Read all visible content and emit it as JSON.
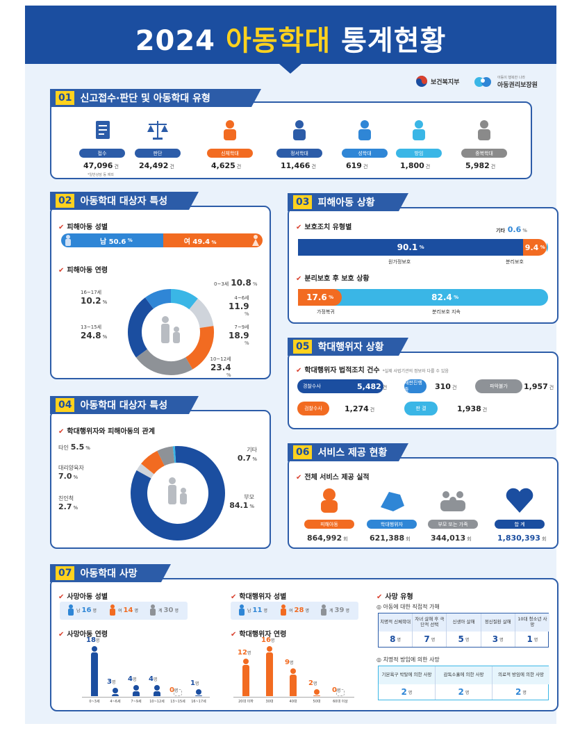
{
  "header": {
    "year": "2024",
    "highlight": "아동학대",
    "rest": "통계현황"
  },
  "logos": {
    "ministry": "보건복지부",
    "agency": "아동권리보장원",
    "agency_tag": "아동이 행복한 나라"
  },
  "sec01": {
    "no": "01",
    "title": "신고접수·판단 및 아동학대 유형",
    "items": [
      {
        "label": "접수",
        "value": "47,096",
        "unit": "건",
        "note": "*일반상담 등 제외",
        "color": "#2c5ca8"
      },
      {
        "label": "판단",
        "value": "24,492",
        "unit": "건",
        "color": "#2c5ca8"
      },
      {
        "label": "신체학대",
        "value": "4,625",
        "unit": "건",
        "color": "#f26b21"
      },
      {
        "label": "정서학대",
        "value": "11,466",
        "unit": "건",
        "color": "#2c5ca8"
      },
      {
        "label": "성학대",
        "value": "619",
        "unit": "건",
        "color": "#2f86d6"
      },
      {
        "label": "방임",
        "value": "1,800",
        "unit": "건",
        "color": "#3ab6e6"
      },
      {
        "label": "중복학대",
        "value": "5,982",
        "unit": "건",
        "color": "#8a8a8a"
      }
    ]
  },
  "sec02": {
    "no": "02",
    "title": "아동학대 대상자 특성",
    "gender_title": "피해아동 성별",
    "male": "남 50.6",
    "female": "여 49.4",
    "pct": "%",
    "age_title": "피해아동 연령",
    "ages": [
      {
        "label": "0~3세",
        "value": "10.8",
        "pct": 10.8,
        "color": "#3ab6e6"
      },
      {
        "label": "4~6세",
        "value": "11.9",
        "pct": 11.9,
        "color": "#cfd4db"
      },
      {
        "label": "7~9세",
        "value": "18.9",
        "pct": 18.9,
        "color": "#f26b21"
      },
      {
        "label": "10~12세",
        "value": "23.4",
        "pct": 23.4,
        "color": "#8e9297"
      },
      {
        "label": "13~15세",
        "value": "24.8",
        "pct": 24.8,
        "color": "#1b4ea0"
      },
      {
        "label": "16~17세",
        "value": "10.2",
        "pct": 10.2,
        "color": "#2f86d6"
      }
    ]
  },
  "sec03": {
    "no": "03",
    "title": "피해아동 상황",
    "prot_title": "보호조치 유형별",
    "home": {
      "value": "90.1",
      "label": "원가정보호"
    },
    "sep": {
      "value": "9.4",
      "label": "분리보호"
    },
    "etc": {
      "label": "기타",
      "value": "0.6"
    },
    "after_title": "분리보호 후 보호 상황",
    "ret": {
      "value": "17.6",
      "label": "가정복귀"
    },
    "cont": {
      "value": "82.4",
      "label": "분리보호 지속"
    },
    "pct": "%"
  },
  "sec04": {
    "no": "04",
    "title": "아동학대 대상자 특성",
    "rel_title": "학대행위자와 피해아동의 관계",
    "rels": [
      {
        "label": "부모",
        "value": "84.1",
        "pct": 84.1,
        "color": "#1b4ea0"
      },
      {
        "label": "친인척",
        "value": "2.7",
        "pct": 2.7,
        "color": "#cfd4db"
      },
      {
        "label": "대리양육자",
        "value": "7.0",
        "pct": 7.0,
        "color": "#f26b21"
      },
      {
        "label": "타인",
        "value": "5.5",
        "pct": 5.5,
        "color": "#8e9297"
      },
      {
        "label": "기타",
        "value": "0.7",
        "pct": 0.7,
        "color": "#3ab6e6"
      }
    ],
    "pct": "%"
  },
  "sec05": {
    "no": "05",
    "title": "학대행위자 상황",
    "legal_title": "학대행위자 법적조치 건수",
    "legal_note": "*실제 사법기관의 정보와 다를 수 있음",
    "items": [
      {
        "label": "경찰수사",
        "value": "5,482",
        "color": "#1b4ea0"
      },
      {
        "label": "재판진행중",
        "value": "310",
        "color": "#2f86d6"
      },
      {
        "label": "파악불가",
        "value": "1,957",
        "color": "#8e9297"
      },
      {
        "label": "검찰수사",
        "value": "1,274",
        "color": "#f26b21"
      },
      {
        "label": "판 결",
        "value": "1,938",
        "color": "#3ab6e6"
      }
    ],
    "unit": "건"
  },
  "sec06": {
    "no": "06",
    "title": "서비스 제공 현황",
    "svc_title": "전체 서비스 제공 실적",
    "items": [
      {
        "label": "피해아동",
        "value": "864,992",
        "color": "#f26b21"
      },
      {
        "label": "학대행위자",
        "value": "621,388",
        "color": "#2f86d6"
      },
      {
        "label": "부모 또는 가족",
        "value": "344,013",
        "color": "#8e9297"
      },
      {
        "label": "합 계",
        "value": "1,830,393",
        "color": "#1b4ea0"
      }
    ],
    "unit": "회"
  },
  "sec07": {
    "no": "07",
    "title": "아동학대 사망",
    "cg_title": "사망아동 성별",
    "cg": {
      "male": "16",
      "female": "14",
      "total": "30"
    },
    "pg_title": "학대행위자 성별",
    "pg": {
      "male": "11",
      "female": "28",
      "total": "39"
    },
    "g": {
      "m": "남",
      "f": "여",
      "t": "계",
      "unit": "명"
    },
    "cage_title": "사망아동 연령",
    "cage": [
      {
        "label": "0~3세",
        "value": 18
      },
      {
        "label": "4~6세",
        "value": 3
      },
      {
        "label": "7~9세",
        "value": 4
      },
      {
        "label": "10~12세",
        "value": 4
      },
      {
        "label": "13~15세",
        "value": 0
      },
      {
        "label": "16~17세",
        "value": 1
      }
    ],
    "page_title": "학대행위자 연령",
    "page": [
      {
        "label": "20대 이하",
        "value": 12
      },
      {
        "label": "30대",
        "value": 16
      },
      {
        "label": "40대",
        "value": 9
      },
      {
        "label": "50대",
        "value": 2
      },
      {
        "label": "60대 이상",
        "value": 0
      }
    ],
    "dtype_title": "사망 유형",
    "direct_title": "아동에 대한 직접적 가해",
    "direct": [
      {
        "label": "치명적 신체학대",
        "value": "8"
      },
      {
        "label": "자녀 살해 후 극단적 선택",
        "value": "7"
      },
      {
        "label": "신생아 살해",
        "value": "5"
      },
      {
        "label": "정신질환 살해",
        "value": "3"
      },
      {
        "label": "10대 청소년 사망",
        "value": "1"
      }
    ],
    "neglect_title": "치명적 방임에 의한 사망",
    "neglect": [
      {
        "label": "기본욕구 박탈에 의한 사망",
        "value": "2"
      },
      {
        "label": "감독소홀에 의한 사망",
        "value": "2"
      },
      {
        "label": "의료적 방임에 의한 사망",
        "value": "2"
      }
    ]
  }
}
